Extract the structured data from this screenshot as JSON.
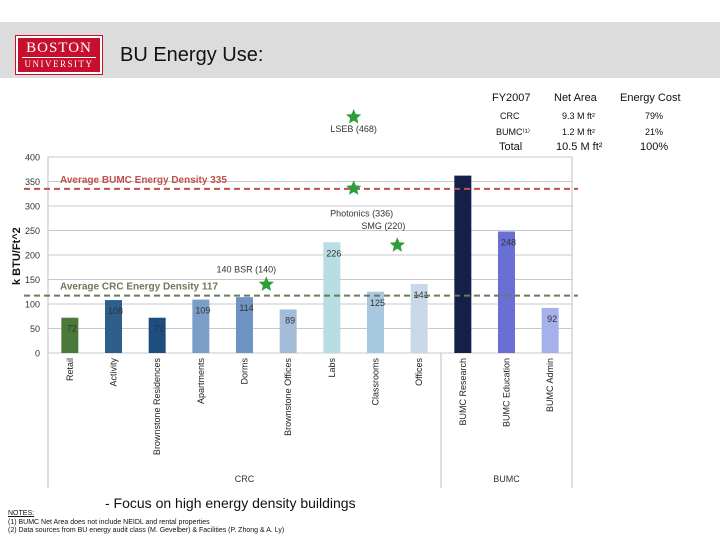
{
  "header": {
    "logo_line1": "BOSTON",
    "logo_line2": "UNIVERSITY",
    "title": "BU Energy Use:"
  },
  "table": {
    "headers": [
      "FY2007",
      "Net Area",
      "Energy Cost"
    ],
    "rows": [
      {
        "label": "CRC",
        "area": "9.3 M ft²",
        "cost": "79%"
      },
      {
        "label": "BUMC⁽¹⁾",
        "area": "1.2 M ft²",
        "cost": "21%"
      }
    ],
    "total": {
      "label": "Total",
      "area": "10.5 M ft²",
      "cost": "100%"
    }
  },
  "chart_data": {
    "type": "bar",
    "ylabel": "k BTU/Ft^2",
    "ylim": [
      0,
      400
    ],
    "yticks": [
      0,
      50,
      100,
      150,
      200,
      250,
      300,
      350,
      400
    ],
    "grid": true,
    "categories": [
      "Retail",
      "Activity",
      "Brownstone Residences",
      "Apartments",
      "Dorms",
      "Brownstone Offices",
      "Labs",
      "Classrooms",
      "Offices",
      "BUMC Research",
      "BUMC Education",
      "BUMC Admin"
    ],
    "values": [
      72,
      108,
      72,
      109,
      114,
      89,
      226,
      125,
      141,
      362,
      248,
      92
    ],
    "data_labels": [
      "72",
      "108",
      "72",
      "109",
      "114",
      "89",
      "226",
      "125",
      "141",
      "",
      "248",
      "92"
    ],
    "colors": [
      "#4a7a3a",
      "#2e5f8a",
      "#1e4d80",
      "#7b9ec8",
      "#6f93c2",
      "#a3bcd9",
      "#b8dde3",
      "#a8c8e0",
      "#c8d8e8",
      "#13204a",
      "#6a6fd6",
      "#a6b0ea"
    ],
    "groups": [
      {
        "label": "CRC",
        "from": 0,
        "to": 8
      },
      {
        "label": "BUMC",
        "from": 9,
        "to": 11
      }
    ],
    "reference_lines": [
      {
        "label": "Average BUMC Energy Density 335",
        "value": 335,
        "color": "#c0504d"
      },
      {
        "label": "Average CRC Energy Density 117",
        "value": 117,
        "color": "#6a7a5a"
      }
    ],
    "annotations": [
      {
        "label": "LSEB (468)",
        "value": 468,
        "between": [
          6,
          7
        ]
      },
      {
        "label": "Photonics (336)",
        "value": 336,
        "between": [
          6,
          7
        ]
      },
      {
        "label": "SMG (220)",
        "value": 220,
        "between": [
          7,
          8
        ]
      },
      {
        "label": "140 BSR (140)",
        "value": 140,
        "between": [
          4,
          5
        ]
      }
    ]
  },
  "footer": {
    "focus": "- Focus on high energy density buildings",
    "notes_label": "NOTES:",
    "notes": [
      "(1) BUMC Net Area does not include NEIDL and rental properties",
      "(2) Data sources from BU energy audit class (M. Gevelber) & Facilities (P. Zhong & A. Ly)"
    ]
  }
}
